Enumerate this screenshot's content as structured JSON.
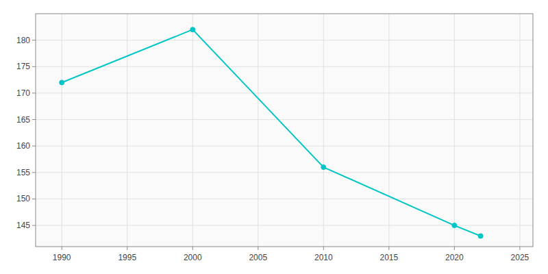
{
  "chart_data": {
    "type": "line",
    "x": [
      1990,
      2000,
      2010,
      2020,
      2022
    ],
    "values": [
      172,
      182,
      156,
      145,
      143
    ],
    "color": "#00C5C5",
    "marker": "circle",
    "xlim": [
      1988,
      2026
    ],
    "ylim": [
      141,
      185
    ],
    "xticks": [
      1990,
      1995,
      2000,
      2005,
      2010,
      2015,
      2020,
      2025
    ],
    "yticks": [
      145,
      150,
      155,
      160,
      165,
      170,
      175,
      180
    ],
    "grid": true
  }
}
